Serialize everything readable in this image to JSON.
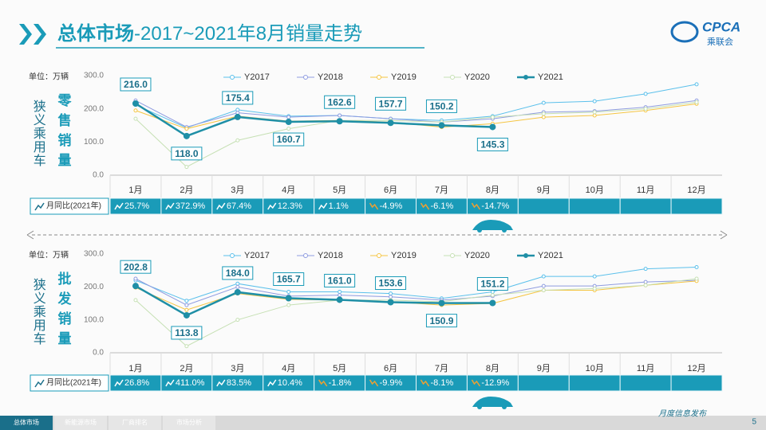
{
  "header": {
    "title_bold": "总体市场",
    "title_rest": "-2017~2021年8月销量走势",
    "logo": "CPCA",
    "logo_sub": "乘联会"
  },
  "chart_data": [
    {
      "type": "line",
      "title": "零售销量",
      "side_label": "狭义乘用车",
      "unit_label": "单位：万辆",
      "categories": [
        "1月",
        "2月",
        "3月",
        "4月",
        "5月",
        "6月",
        "7月",
        "8月",
        "9月",
        "10月",
        "11月",
        "12月"
      ],
      "ylim": [
        0,
        300
      ],
      "yticks": [
        {
          "value": 0,
          "label": "0.0"
        },
        {
          "value": 100,
          "label": "100.0"
        },
        {
          "value": 200,
          "label": "200.0"
        },
        {
          "value": 300,
          "label": "300.0"
        }
      ],
      "grid": false,
      "series": [
        {
          "name": "Y2017",
          "color": "#5bc0eb",
          "values": [
            212,
            143,
            197,
            178,
            180,
            170,
            165,
            178,
            218,
            223,
            245,
            274
          ]
        },
        {
          "name": "Y2018",
          "color": "#8f9ce0",
          "values": [
            225,
            145,
            188,
            175,
            180,
            170,
            160,
            170,
            190,
            193,
            205,
            225
          ]
        },
        {
          "name": "Y2019",
          "color": "#f5c542",
          "values": [
            195,
            140,
            178,
            163,
            165,
            160,
            145,
            155,
            175,
            180,
            195,
            215
          ]
        },
        {
          "name": "Y2020",
          "color": "#c6e0b4",
          "values": [
            170,
            25,
            105,
            140,
            165,
            165,
            160,
            175,
            185,
            190,
            200,
            220
          ]
        },
        {
          "name": "Y2021",
          "color": "#1f8fa6",
          "values": [
            216.0,
            118.0,
            175.4,
            160.7,
            162.6,
            157.7,
            150.2,
            145.3,
            null,
            null,
            null,
            null
          ],
          "value_labels": [
            "216.0",
            "118.0",
            "175.4",
            "160.7",
            "162.6",
            "157.7",
            "150.2",
            "145.3",
            null,
            null,
            null,
            null
          ]
        }
      ],
      "yoy": {
        "label": "月同比(2021年)",
        "values": [
          25.7,
          372.9,
          67.4,
          12.3,
          1.1,
          -4.9,
          -6.1,
          -14.7
        ],
        "value_labels": [
          "25.7%",
          "372.9%",
          "67.4%",
          "12.3%",
          "1.1%",
          "-4.9%",
          "-6.1%",
          "-14.7%"
        ]
      }
    },
    {
      "type": "line",
      "title": "批发销量",
      "side_label": "狭义乘用车",
      "unit_label": "单位：万辆",
      "categories": [
        "1月",
        "2月",
        "3月",
        "4月",
        "5月",
        "6月",
        "7月",
        "8月",
        "9月",
        "10月",
        "11月",
        "12月"
      ],
      "ylim": [
        0,
        300
      ],
      "yticks": [
        {
          "value": 0,
          "label": "0.0"
        },
        {
          "value": 100,
          "label": "100.0"
        },
        {
          "value": 200,
          "label": "200.0"
        },
        {
          "value": 300,
          "label": "300.0"
        }
      ],
      "grid": false,
      "series": [
        {
          "name": "Y2017",
          "color": "#5bc0eb",
          "values": [
            220,
            158,
            210,
            185,
            185,
            180,
            165,
            185,
            232,
            232,
            255,
            260
          ]
        },
        {
          "name": "Y2018",
          "color": "#8f9ce0",
          "values": [
            225,
            145,
            200,
            172,
            175,
            170,
            160,
            172,
            203,
            203,
            215,
            220
          ]
        },
        {
          "name": "Y2019",
          "color": "#f5c542",
          "values": [
            198,
            130,
            180,
            162,
            160,
            155,
            145,
            150,
            190,
            190,
            205,
            218
          ]
        },
        {
          "name": "Y2020",
          "color": "#c6e0b4",
          "values": [
            160,
            20,
            100,
            145,
            160,
            160,
            155,
            175,
            190,
            195,
            205,
            225
          ]
        },
        {
          "name": "Y2021",
          "color": "#1f8fa6",
          "values": [
            202.8,
            113.8,
            184.0,
            165.7,
            161.0,
            153.6,
            150.9,
            151.2,
            null,
            null,
            null,
            null
          ],
          "value_labels": [
            "202.8",
            "113.8",
            "184.0",
            "165.7",
            "161.0",
            "153.6",
            "150.9",
            "151.2",
            null,
            null,
            null,
            null
          ]
        }
      ],
      "yoy": {
        "label": "月同比(2021年)",
        "values": [
          26.8,
          411.0,
          83.5,
          10.4,
          -1.8,
          -9.9,
          -8.1,
          -12.9
        ],
        "value_labels": [
          "26.8%",
          "411.0%",
          "83.5%",
          "10.4%",
          "-1.8%",
          "-9.9%",
          "-8.1%",
          "-12.9%"
        ]
      }
    }
  ],
  "footer": {
    "tabs": [
      "总体市场",
      "新能源市场",
      "厂商排名",
      "市场分析"
    ],
    "note": "月度信息发布",
    "page": "5"
  }
}
